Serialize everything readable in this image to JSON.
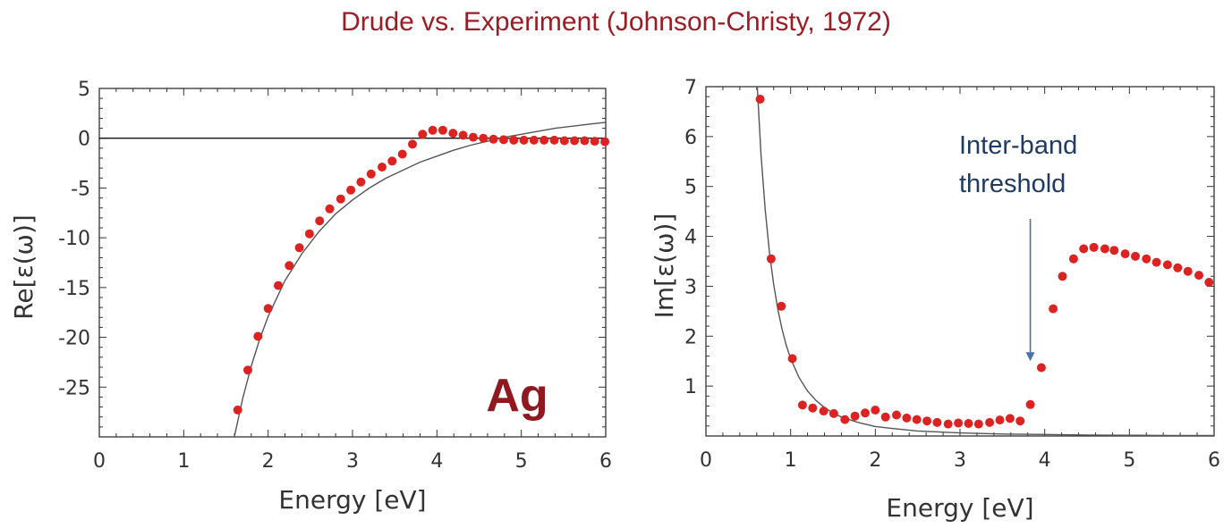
{
  "title": "Drude vs. Experiment (Johnson-Christy, 1972)",
  "colors": {
    "title": "#9b1c24",
    "points": "#dd2222",
    "curve": "#555555",
    "annotation": "#1f3b63",
    "arrow": "#4a72b0",
    "element_label": "#8e1a1f"
  },
  "chart_data": [
    {
      "type": "scatter",
      "ylabel": "Re[ε(ω)]",
      "xlabel": "Energy [eV]",
      "xlim": [
        0,
        6
      ],
      "ylim": [
        -30,
        5
      ],
      "xticks": [
        0,
        1,
        2,
        3,
        4,
        5,
        6
      ],
      "yticks": [
        5,
        0,
        -5,
        -10,
        -15,
        -20,
        -25
      ],
      "zero_line": true,
      "grid": false,
      "inset_label": "Ag",
      "series": [
        {
          "kind": "points",
          "x": [
            1.64,
            1.76,
            1.88,
            2.0,
            2.12,
            2.25,
            2.37,
            2.49,
            2.61,
            2.73,
            2.86,
            2.98,
            3.1,
            3.22,
            3.35,
            3.47,
            3.59,
            3.71,
            3.83,
            3.95,
            4.07,
            4.19,
            4.31,
            4.43,
            4.55,
            4.67,
            4.79,
            4.91,
            5.03,
            5.15,
            5.27,
            5.39,
            5.51,
            5.63,
            5.75,
            5.87,
            5.99
          ],
          "y": [
            -27.3,
            -23.3,
            -19.9,
            -17.1,
            -14.8,
            -12.8,
            -11.0,
            -9.6,
            -8.3,
            -7.1,
            -6.1,
            -5.2,
            -4.4,
            -3.6,
            -2.9,
            -2.3,
            -1.6,
            -0.6,
            0.4,
            0.8,
            0.8,
            0.5,
            0.3,
            0.1,
            0.0,
            -0.1,
            -0.15,
            -0.2,
            -0.2,
            -0.2,
            -0.2,
            -0.2,
            -0.25,
            -0.25,
            -0.25,
            -0.3,
            -0.35
          ]
        },
        {
          "kind": "drude-curve",
          "x": [
            1.6,
            1.7,
            1.8,
            1.9,
            2.0,
            2.2,
            2.4,
            2.6,
            2.8,
            3.0,
            3.2,
            3.4,
            3.6,
            3.8,
            4.0,
            4.2,
            4.4,
            4.6,
            4.8,
            5.0,
            5.2,
            5.4,
            5.6,
            5.8,
            6.0
          ],
          "y": [
            -30.0,
            -26.1,
            -22.9,
            -20.2,
            -17.9,
            -14.3,
            -11.6,
            -9.4,
            -7.6,
            -6.2,
            -5.0,
            -4.0,
            -3.2,
            -2.4,
            -1.8,
            -1.2,
            -0.7,
            -0.3,
            0.1,
            0.4,
            0.7,
            1.0,
            1.2,
            1.4,
            1.6
          ]
        }
      ]
    },
    {
      "type": "scatter",
      "ylabel": "Im[ε(ω)]",
      "xlabel": "Energy [eV]",
      "xlim": [
        0,
        6
      ],
      "ylim": [
        0,
        7
      ],
      "xticks": [
        0,
        1,
        2,
        3,
        4,
        5,
        6
      ],
      "yticks": [
        1,
        2,
        3,
        4,
        5,
        6,
        7
      ],
      "grid": false,
      "annotation": {
        "lines": [
          "Inter-band",
          "threshold"
        ],
        "arrow_x": 3.83,
        "arrow_from_y": 4.35,
        "arrow_to_y": 1.5
      },
      "series": [
        {
          "kind": "points",
          "x": [
            0.64,
            0.77,
            0.89,
            1.02,
            1.14,
            1.26,
            1.39,
            1.51,
            1.64,
            1.76,
            1.88,
            2.0,
            2.12,
            2.25,
            2.37,
            2.49,
            2.61,
            2.73,
            2.86,
            2.98,
            3.1,
            3.22,
            3.35,
            3.47,
            3.59,
            3.71,
            3.83,
            3.96,
            4.1,
            4.21,
            4.34,
            4.46,
            4.58,
            4.71,
            4.82,
            4.95,
            5.07,
            5.2,
            5.32,
            5.45,
            5.57,
            5.69,
            5.82,
            5.94
          ],
          "y": [
            6.75,
            3.55,
            2.6,
            1.55,
            0.62,
            0.56,
            0.5,
            0.45,
            0.33,
            0.4,
            0.46,
            0.52,
            0.38,
            0.42,
            0.36,
            0.33,
            0.3,
            0.27,
            0.24,
            0.26,
            0.25,
            0.24,
            0.27,
            0.32,
            0.35,
            0.3,
            0.63,
            1.37,
            2.55,
            3.2,
            3.55,
            3.75,
            3.78,
            3.75,
            3.72,
            3.65,
            3.6,
            3.55,
            3.48,
            3.43,
            3.37,
            3.3,
            3.22,
            3.08
          ]
        },
        {
          "kind": "drude-curve",
          "x": [
            0.6,
            0.65,
            0.7,
            0.75,
            0.8,
            0.85,
            0.9,
            0.95,
            1.0,
            1.1,
            1.2,
            1.3,
            1.4,
            1.5,
            1.6,
            1.8,
            2.0,
            2.2,
            2.5,
            3.0,
            3.5,
            4.0,
            4.5,
            5.0,
            5.5,
            6.0
          ],
          "y": [
            7.2,
            5.66,
            4.53,
            3.68,
            3.04,
            2.53,
            2.13,
            1.81,
            1.55,
            1.17,
            0.9,
            0.71,
            0.57,
            0.46,
            0.38,
            0.27,
            0.19,
            0.15,
            0.1,
            0.06,
            0.04,
            0.03,
            0.02,
            0.015,
            0.011,
            0.009
          ]
        }
      ]
    }
  ]
}
